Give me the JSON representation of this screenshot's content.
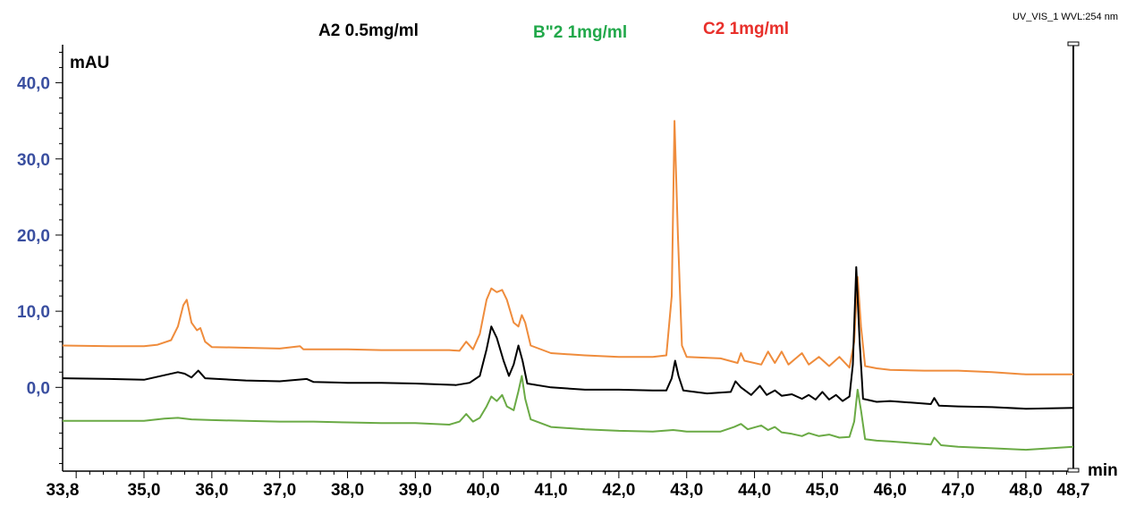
{
  "chart_data": {
    "type": "line",
    "header_right": "UV_VIS_1 WVL:254 nm",
    "ylabel": "mAU",
    "xlabel": "min",
    "xlim": [
      33.8,
      48.7
    ],
    "ylim": [
      -11,
      45
    ],
    "x_ticks": [
      "33,8",
      "35,0",
      "36,0",
      "37,0",
      "38,0",
      "39,0",
      "40,0",
      "41,0",
      "42,0",
      "43,0",
      "44,0",
      "45,0",
      "46,0",
      "47,0",
      "48,0",
      "48,7"
    ],
    "y_ticks": [
      "0,0",
      "10,0",
      "20,0",
      "30,0",
      "40,0"
    ],
    "grid": false,
    "legend_position": "top",
    "series": [
      {
        "name": "A2  0.5mg/ml",
        "color": "#000000",
        "points": [
          [
            33.8,
            1.2
          ],
          [
            34.5,
            1.1
          ],
          [
            35.0,
            1.0
          ],
          [
            35.3,
            1.6
          ],
          [
            35.5,
            2.0
          ],
          [
            35.6,
            1.8
          ],
          [
            35.7,
            1.3
          ],
          [
            35.8,
            2.2
          ],
          [
            35.9,
            1.2
          ],
          [
            36.5,
            0.9
          ],
          [
            37.0,
            0.8
          ],
          [
            37.4,
            1.1
          ],
          [
            37.5,
            0.7
          ],
          [
            38.0,
            0.6
          ],
          [
            38.5,
            0.6
          ],
          [
            39.0,
            0.5
          ],
          [
            39.6,
            0.3
          ],
          [
            39.8,
            0.6
          ],
          [
            39.95,
            1.5
          ],
          [
            40.05,
            5.0
          ],
          [
            40.12,
            8.0
          ],
          [
            40.2,
            6.5
          ],
          [
            40.3,
            3.5
          ],
          [
            40.38,
            1.5
          ],
          [
            40.45,
            3.0
          ],
          [
            40.52,
            5.5
          ],
          [
            40.58,
            3.5
          ],
          [
            40.65,
            0.5
          ],
          [
            41.0,
            0.0
          ],
          [
            41.5,
            -0.3
          ],
          [
            42.0,
            -0.3
          ],
          [
            42.5,
            -0.4
          ],
          [
            42.7,
            -0.4
          ],
          [
            42.78,
            1.2
          ],
          [
            42.83,
            3.5
          ],
          [
            42.88,
            1.5
          ],
          [
            42.95,
            -0.4
          ],
          [
            43.3,
            -0.8
          ],
          [
            43.65,
            -0.6
          ],
          [
            43.72,
            0.8
          ],
          [
            43.8,
            0.0
          ],
          [
            43.95,
            -1.0
          ],
          [
            44.08,
            0.2
          ],
          [
            44.18,
            -1.0
          ],
          [
            44.3,
            -0.4
          ],
          [
            44.4,
            -1.1
          ],
          [
            44.55,
            -0.9
          ],
          [
            44.7,
            -1.5
          ],
          [
            44.8,
            -1.0
          ],
          [
            44.9,
            -1.6
          ],
          [
            45.0,
            -0.6
          ],
          [
            45.1,
            -1.6
          ],
          [
            45.2,
            -1.0
          ],
          [
            45.3,
            -1.8
          ],
          [
            45.4,
            -1.2
          ],
          [
            45.45,
            3.0
          ],
          [
            45.5,
            15.8
          ],
          [
            45.55,
            6.0
          ],
          [
            45.6,
            -1.5
          ],
          [
            45.8,
            -1.9
          ],
          [
            46.0,
            -1.8
          ],
          [
            46.3,
            -2.0
          ],
          [
            46.6,
            -2.2
          ],
          [
            46.65,
            -1.4
          ],
          [
            46.72,
            -2.4
          ],
          [
            47.0,
            -2.5
          ],
          [
            47.5,
            -2.6
          ],
          [
            48.0,
            -2.8
          ],
          [
            48.7,
            -2.7
          ]
        ]
      },
      {
        "name": "B\"2 1mg/ml",
        "color": "#6aaa45",
        "points": [
          [
            33.8,
            -4.4
          ],
          [
            34.5,
            -4.4
          ],
          [
            35.0,
            -4.4
          ],
          [
            35.3,
            -4.1
          ],
          [
            35.5,
            -4.0
          ],
          [
            35.7,
            -4.2
          ],
          [
            36.0,
            -4.3
          ],
          [
            36.5,
            -4.4
          ],
          [
            37.0,
            -4.5
          ],
          [
            37.5,
            -4.5
          ],
          [
            38.0,
            -4.6
          ],
          [
            38.5,
            -4.7
          ],
          [
            39.0,
            -4.7
          ],
          [
            39.5,
            -4.9
          ],
          [
            39.65,
            -4.5
          ],
          [
            39.75,
            -3.5
          ],
          [
            39.85,
            -4.5
          ],
          [
            39.95,
            -4.0
          ],
          [
            40.05,
            -2.5
          ],
          [
            40.12,
            -1.2
          ],
          [
            40.2,
            -1.8
          ],
          [
            40.28,
            -1.0
          ],
          [
            40.35,
            -2.5
          ],
          [
            40.45,
            -3.0
          ],
          [
            40.52,
            -0.5
          ],
          [
            40.57,
            1.5
          ],
          [
            40.62,
            -1.5
          ],
          [
            40.7,
            -4.2
          ],
          [
            41.0,
            -5.2
          ],
          [
            41.5,
            -5.5
          ],
          [
            42.0,
            -5.7
          ],
          [
            42.5,
            -5.8
          ],
          [
            42.8,
            -5.6
          ],
          [
            43.0,
            -5.8
          ],
          [
            43.5,
            -5.8
          ],
          [
            43.7,
            -5.2
          ],
          [
            43.8,
            -4.8
          ],
          [
            43.9,
            -5.5
          ],
          [
            44.1,
            -5.0
          ],
          [
            44.2,
            -5.6
          ],
          [
            44.3,
            -5.2
          ],
          [
            44.4,
            -5.9
          ],
          [
            44.55,
            -6.1
          ],
          [
            44.7,
            -6.4
          ],
          [
            44.8,
            -6.0
          ],
          [
            44.95,
            -6.4
          ],
          [
            45.1,
            -6.2
          ],
          [
            45.25,
            -6.6
          ],
          [
            45.4,
            -6.5
          ],
          [
            45.47,
            -4.5
          ],
          [
            45.52,
            -0.3
          ],
          [
            45.57,
            -3.0
          ],
          [
            45.63,
            -6.8
          ],
          [
            45.8,
            -7.0
          ],
          [
            46.0,
            -7.1
          ],
          [
            46.3,
            -7.3
          ],
          [
            46.6,
            -7.5
          ],
          [
            46.65,
            -6.6
          ],
          [
            46.75,
            -7.6
          ],
          [
            47.0,
            -7.8
          ],
          [
            47.5,
            -8.0
          ],
          [
            48.0,
            -8.2
          ],
          [
            48.7,
            -7.8
          ]
        ]
      },
      {
        "name": "C2 1mg/ml",
        "color": "#ef8c3c",
        "points": [
          [
            33.8,
            5.5
          ],
          [
            34.5,
            5.4
          ],
          [
            35.0,
            5.4
          ],
          [
            35.2,
            5.6
          ],
          [
            35.4,
            6.2
          ],
          [
            35.5,
            8.0
          ],
          [
            35.58,
            10.8
          ],
          [
            35.63,
            11.5
          ],
          [
            35.7,
            8.5
          ],
          [
            35.78,
            7.5
          ],
          [
            35.83,
            7.8
          ],
          [
            35.9,
            6.0
          ],
          [
            36.0,
            5.3
          ],
          [
            36.5,
            5.2
          ],
          [
            37.0,
            5.1
          ],
          [
            37.3,
            5.4
          ],
          [
            37.35,
            5.0
          ],
          [
            38.0,
            5.0
          ],
          [
            38.5,
            4.9
          ],
          [
            39.0,
            4.9
          ],
          [
            39.5,
            4.9
          ],
          [
            39.65,
            4.8
          ],
          [
            39.75,
            6.0
          ],
          [
            39.85,
            5.0
          ],
          [
            39.95,
            7.0
          ],
          [
            40.05,
            11.5
          ],
          [
            40.12,
            13.0
          ],
          [
            40.2,
            12.5
          ],
          [
            40.28,
            12.8
          ],
          [
            40.35,
            11.5
          ],
          [
            40.45,
            8.5
          ],
          [
            40.52,
            8.0
          ],
          [
            40.57,
            9.5
          ],
          [
            40.62,
            8.5
          ],
          [
            40.7,
            5.5
          ],
          [
            41.0,
            4.5
          ],
          [
            41.5,
            4.2
          ],
          [
            42.0,
            4.0
          ],
          [
            42.5,
            4.0
          ],
          [
            42.7,
            4.2
          ],
          [
            42.78,
            12.0
          ],
          [
            42.82,
            35.0
          ],
          [
            42.87,
            20.0
          ],
          [
            42.93,
            5.5
          ],
          [
            43.0,
            4.0
          ],
          [
            43.5,
            3.8
          ],
          [
            43.75,
            3.2
          ],
          [
            43.8,
            4.5
          ],
          [
            43.85,
            3.5
          ],
          [
            44.1,
            3.0
          ],
          [
            44.2,
            4.7
          ],
          [
            44.3,
            3.2
          ],
          [
            44.4,
            4.7
          ],
          [
            44.5,
            3.0
          ],
          [
            44.7,
            4.5
          ],
          [
            44.8,
            3.0
          ],
          [
            44.95,
            4.0
          ],
          [
            45.1,
            2.8
          ],
          [
            45.25,
            4.0
          ],
          [
            45.4,
            2.6
          ],
          [
            45.47,
            6.0
          ],
          [
            45.52,
            14.5
          ],
          [
            45.57,
            8.0
          ],
          [
            45.63,
            2.8
          ],
          [
            45.8,
            2.5
          ],
          [
            46.0,
            2.3
          ],
          [
            46.5,
            2.2
          ],
          [
            47.0,
            2.2
          ],
          [
            47.5,
            2.0
          ],
          [
            48.0,
            1.7
          ],
          [
            48.7,
            1.7
          ]
        ]
      }
    ]
  }
}
